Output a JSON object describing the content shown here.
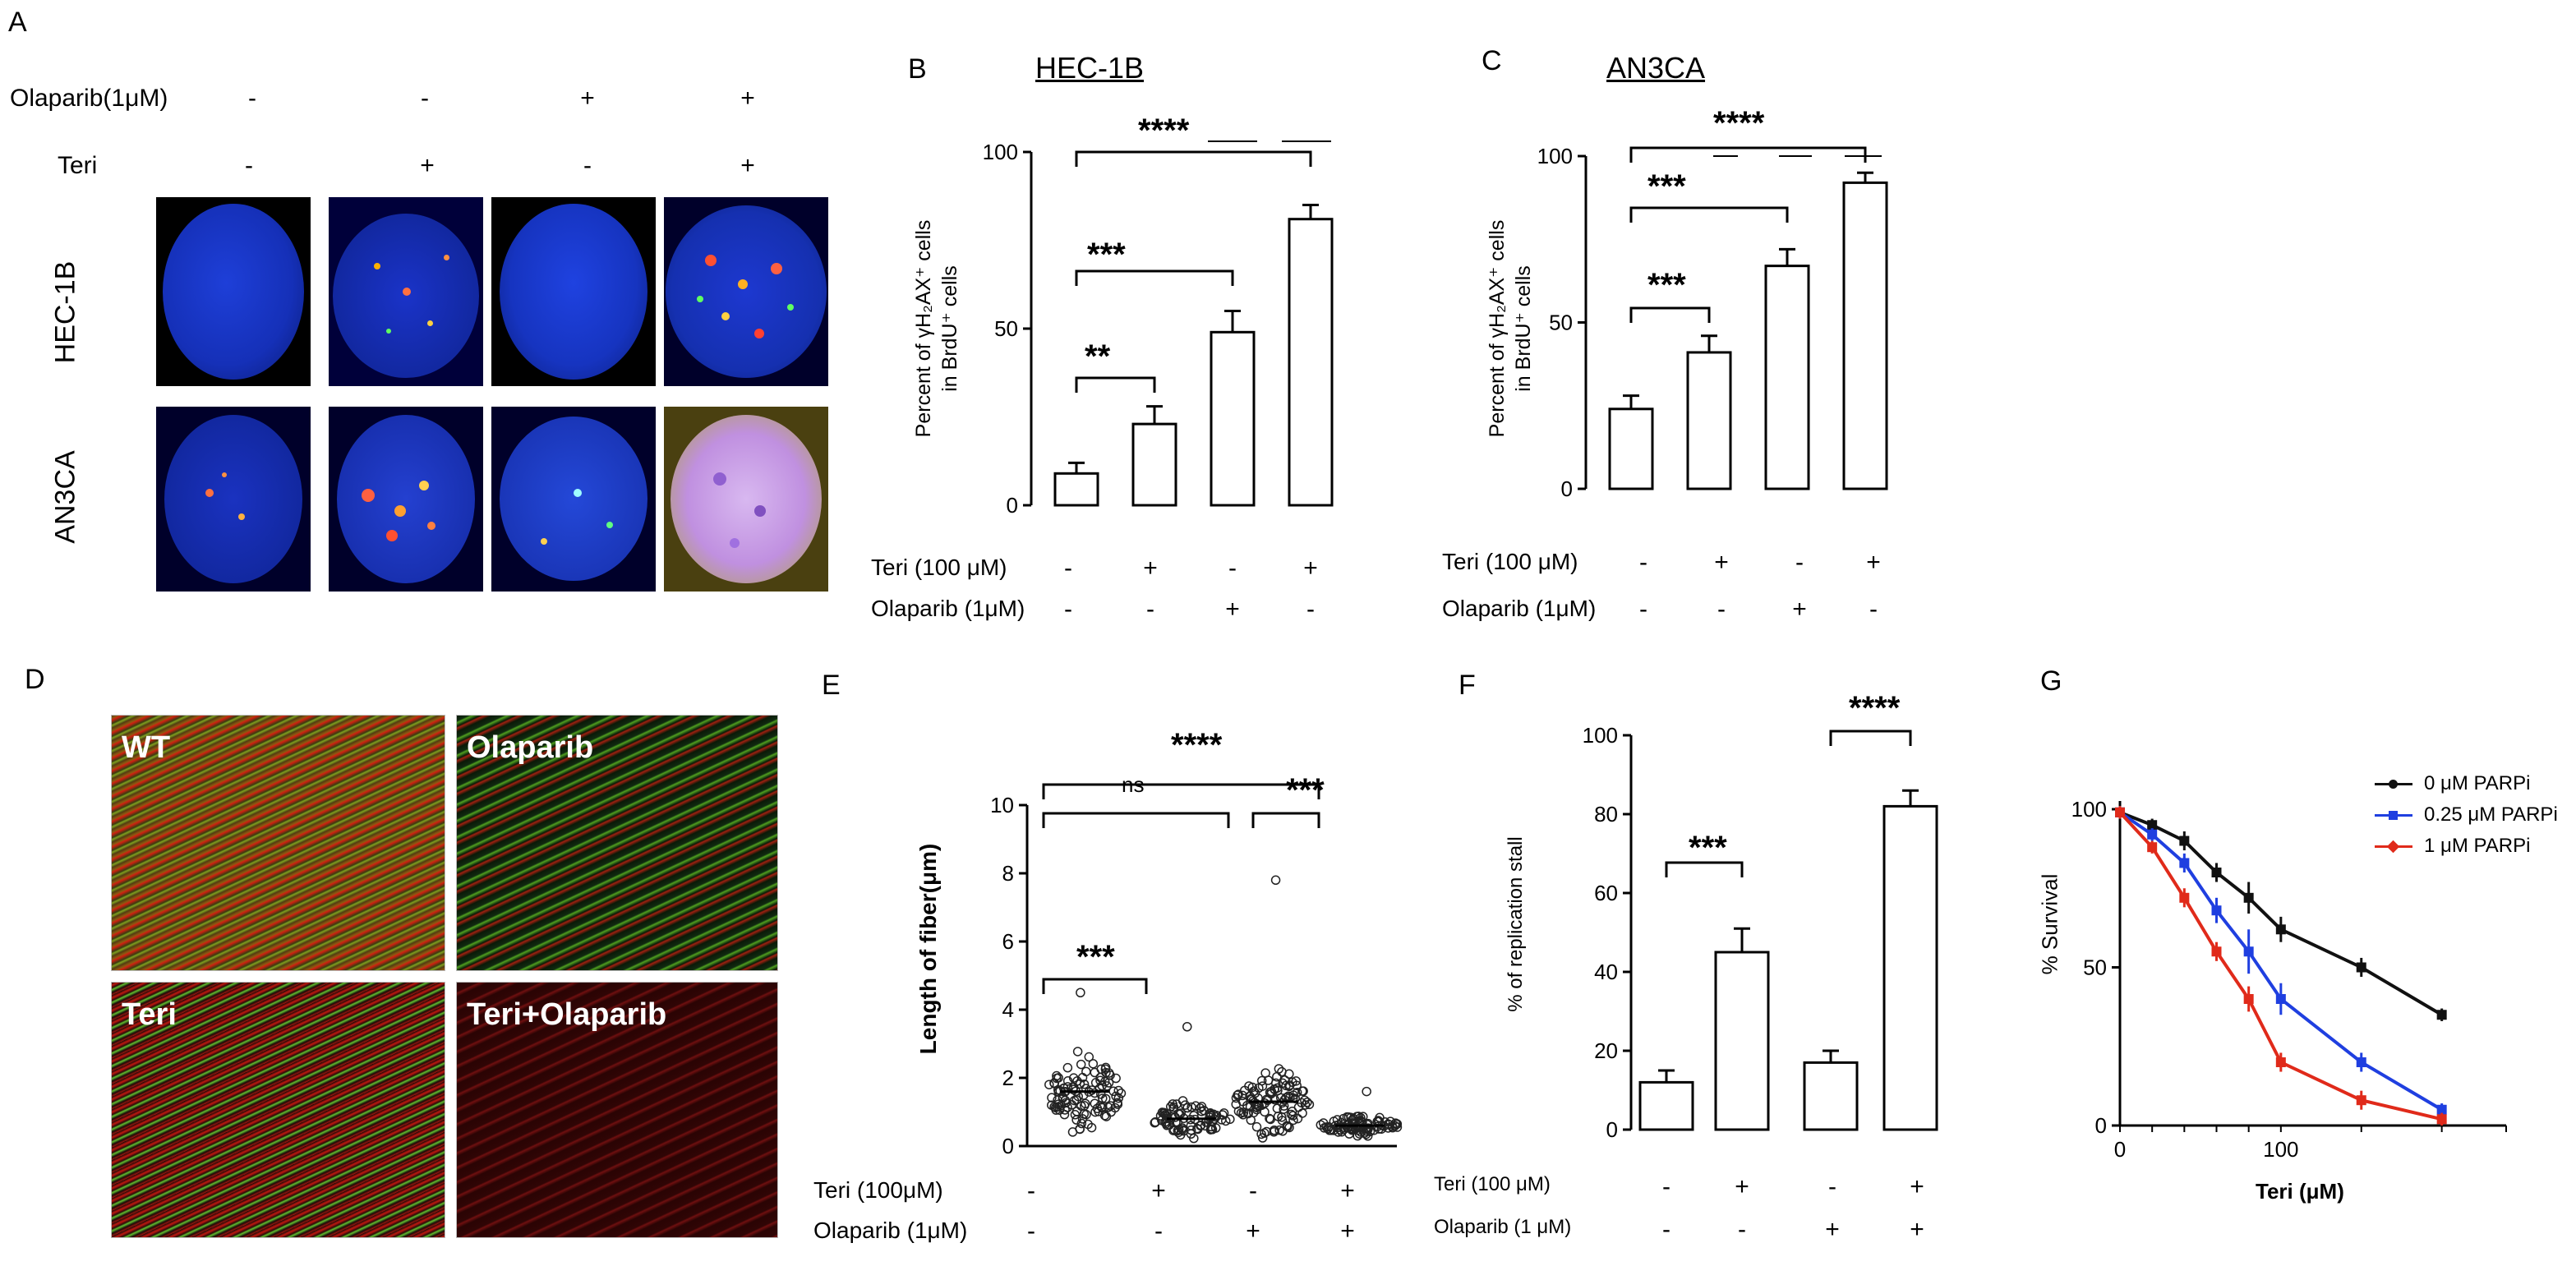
{
  "panel_labels": {
    "a": "A",
    "b": "B",
    "c": "C",
    "d": "D",
    "e": "E",
    "f": "F",
    "g": "G"
  },
  "panelA": {
    "olaparib_label": "Olaparib(1μM)",
    "teri_label": "Teri",
    "olaparib_signs": [
      "-",
      "-",
      "+",
      "+"
    ],
    "teri_signs": [
      "-",
      "+",
      "-",
      "+"
    ],
    "row_labels": [
      "HEC-1B",
      "AN3CA"
    ]
  },
  "panelB": {
    "title": "HEC-1B",
    "ylabel_line1": "Percent of γH₂AX⁺ cells",
    "ylabel_line2": "in BrdU⁺ cells",
    "sig": [
      "**",
      "***",
      "****"
    ],
    "cond_labels": [
      "Teri (100 μM)",
      "Olaparib (1μM)"
    ],
    "teri_signs": [
      "-",
      "+",
      "-",
      "+"
    ],
    "olaparib_signs": [
      "-",
      "-",
      "+",
      "-"
    ]
  },
  "panelC": {
    "title": "AN3CA",
    "ylabel_line1": "Percent of γH₂AX⁺ cells",
    "ylabel_line2": "in BrdU⁺ cells",
    "sig": [
      "***",
      "***",
      "****"
    ],
    "cond_labels": [
      "Teri (100 μM)",
      "Olaparib (1μM)"
    ],
    "teri_signs": [
      "-",
      "+",
      "-",
      "+"
    ],
    "olaparib_signs": [
      "-",
      "-",
      "+",
      "-"
    ]
  },
  "panelD": {
    "labels": [
      "WT",
      "Olaparib",
      "Teri",
      "Teri+Olaparib"
    ]
  },
  "panelE": {
    "ylabel": "Length of fiber(μm)",
    "sig": [
      "***",
      "ns",
      "****",
      "***"
    ],
    "cond_labels": [
      "Teri  (100μM)",
      "Olaparib (1μM)"
    ],
    "teri_signs": [
      "-",
      "+",
      "-",
      "+"
    ],
    "olaparib_signs": [
      "-",
      "-",
      "+",
      "+"
    ]
  },
  "panelF": {
    "ylabel": "% of replication stall",
    "sig": [
      "***",
      "****"
    ],
    "cond_labels": [
      "Teri (100 μM)",
      "Olaparib (1 μM)"
    ],
    "teri_signs": [
      "-",
      "+",
      "-",
      "+"
    ],
    "olaparib_signs": [
      "-",
      "-",
      "+",
      "+"
    ]
  },
  "panelG": {
    "ylabel": "% Survival",
    "xlabel": "Teri (μM)",
    "legend": [
      "0 μM PARPi",
      "0.25 μM PARPi",
      "1 μM PARPi"
    ]
  },
  "chart_data": [
    {
      "type": "bar",
      "panel": "B",
      "title": "HEC-1B",
      "ylabel": "Percent of γH2AX+ cells in BrdU+ cells",
      "ylim": [
        0,
        100
      ],
      "yticks": [
        0,
        50,
        100
      ],
      "categories": [
        "1",
        "2",
        "3",
        "4"
      ],
      "values": [
        9,
        23,
        49,
        81
      ],
      "errors": [
        3,
        5,
        6,
        4
      ],
      "colors": {
        "bar": "#ffffff",
        "stroke": "#000000"
      }
    },
    {
      "type": "bar",
      "panel": "C",
      "title": "AN3CA",
      "ylabel": "Percent of γH2AX+ cells in BrdU+ cells",
      "ylim": [
        0,
        100
      ],
      "yticks": [
        0,
        50,
        100
      ],
      "categories": [
        "1",
        "2",
        "3",
        "4"
      ],
      "values": [
        24,
        41,
        67,
        92
      ],
      "errors": [
        4,
        5,
        5,
        3
      ]
    },
    {
      "type": "scatter",
      "panel": "E",
      "ylabel": "Length of fiber(μm)",
      "ylim": [
        0,
        10
      ],
      "yticks": [
        0,
        2,
        4,
        6,
        8,
        10
      ],
      "groups": [
        {
          "median": 1.6,
          "spread": 0.7,
          "max": 4.5,
          "n": 110
        },
        {
          "median": 0.8,
          "spread": 0.35,
          "max": 3.5,
          "n": 85
        },
        {
          "median": 1.3,
          "spread": 0.6,
          "max": 7.8,
          "n": 110
        },
        {
          "median": 0.6,
          "spread": 0.2,
          "max": 1.6,
          "n": 90
        }
      ]
    },
    {
      "type": "bar",
      "panel": "F",
      "ylabel": "% of replication stall",
      "ylim": [
        0,
        100
      ],
      "yticks": [
        0,
        20,
        40,
        60,
        80,
        100
      ],
      "categories": [
        "1",
        "2",
        "3",
        "4"
      ],
      "values": [
        12,
        45,
        17,
        82
      ],
      "errors": [
        3,
        6,
        3,
        4
      ]
    },
    {
      "type": "line",
      "panel": "G",
      "ylabel": "% Survival",
      "xlabel": "Teri (μM)",
      "ylim": [
        0,
        100
      ],
      "yticks": [
        0,
        50,
        100
      ],
      "xticks": [
        "0",
        "100"
      ],
      "x": [
        0,
        20,
        40,
        60,
        80,
        100,
        150,
        200
      ],
      "series": [
        {
          "name": "0 μM PARPi",
          "color": "#111111",
          "values": [
            99,
            95,
            90,
            80,
            72,
            62,
            50,
            35
          ],
          "errors": [
            2,
            2,
            3,
            3,
            5,
            4,
            3,
            2
          ]
        },
        {
          "name": "0.25 μM PARPi",
          "color": "#1f3fe0",
          "values": [
            99,
            92,
            83,
            68,
            55,
            40,
            20,
            5
          ],
          "errors": [
            2,
            2,
            3,
            4,
            7,
            5,
            3,
            2
          ]
        },
        {
          "name": "1 μM PARPi",
          "color": "#e02a1a",
          "values": [
            99,
            88,
            72,
            55,
            40,
            20,
            8,
            2
          ],
          "errors": [
            2,
            2,
            3,
            3,
            4,
            3,
            3,
            2
          ]
        }
      ]
    }
  ]
}
